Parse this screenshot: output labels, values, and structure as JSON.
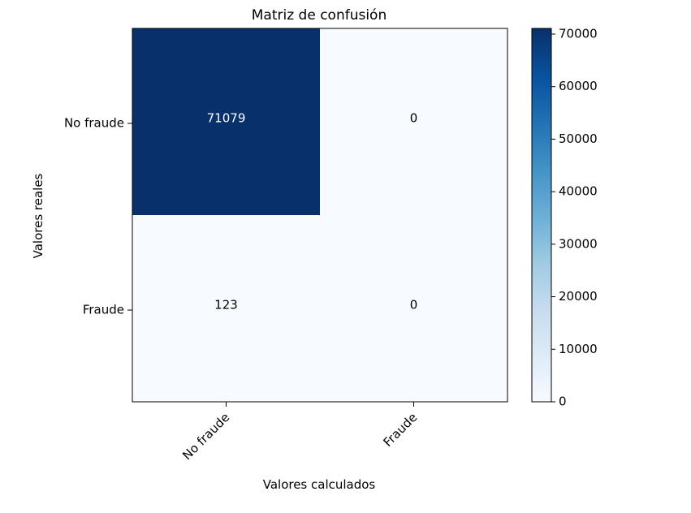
{
  "chart_data": {
    "type": "heatmap",
    "title": "Matriz de confusión",
    "xlabel": "Valores calculados",
    "ylabel": "Valores reales",
    "x_categories": [
      "No fraude",
      "Fraude"
    ],
    "y_categories": [
      "No fraude",
      "Fraude"
    ],
    "values": [
      [
        71079,
        0
      ],
      [
        123,
        0
      ]
    ],
    "colormap": "Blues",
    "colorbar": {
      "min": 0,
      "max": 71079,
      "ticks": [
        0,
        10000,
        20000,
        30000,
        40000,
        50000,
        60000,
        70000
      ]
    },
    "colors": {
      "low": "#f7fbff",
      "high": "#08306b",
      "text_on_dark": "#ffffff",
      "text_on_light": "#000000"
    },
    "grid": false
  }
}
